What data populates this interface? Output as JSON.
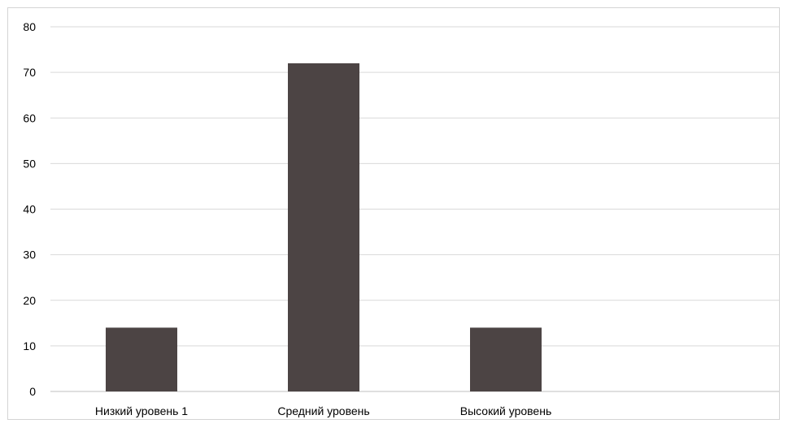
{
  "chart_data": {
    "type": "bar",
    "categories": [
      "Низкий уровень  1",
      "Средний уровень",
      "Высокий уровень"
    ],
    "values": [
      14,
      72,
      14
    ],
    "ylim": [
      0,
      80
    ],
    "yticks": [
      0,
      10,
      20,
      30,
      40,
      50,
      60,
      70,
      80
    ],
    "grid": true,
    "legend": "none",
    "colors": {
      "bar": "#4c4444",
      "grid": "#d9d9d9",
      "axis": "#bfbfbf"
    }
  }
}
